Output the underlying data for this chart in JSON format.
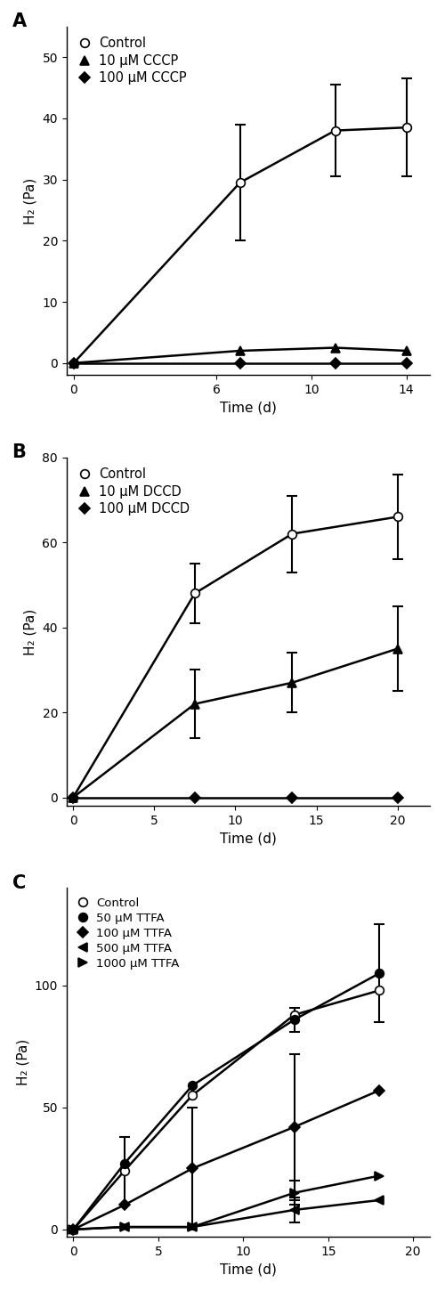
{
  "panel_A": {
    "title": "A",
    "xlabel": "Time (d)",
    "ylabel": "H₂ (Pa)",
    "ylim": [
      -2,
      55
    ],
    "yticks": [
      0,
      10,
      20,
      30,
      40,
      50
    ],
    "xlim": [
      -0.3,
      15
    ],
    "xticks": [
      0,
      6,
      10,
      14
    ],
    "series": [
      {
        "label": "Control",
        "x": [
          0,
          7,
          11,
          14
        ],
        "y": [
          0,
          29.5,
          38.0,
          38.5
        ],
        "yerr": [
          0,
          9.5,
          7.5,
          8.0
        ],
        "marker": "o",
        "markerfacecolor": "white",
        "markeredgecolor": "black",
        "linecolor": "black",
        "markersize": 7,
        "linewidth": 1.8
      },
      {
        "label": "10 μM CCCP",
        "x": [
          0,
          7,
          11,
          14
        ],
        "y": [
          0,
          2.0,
          2.5,
          2.0
        ],
        "yerr": [
          0,
          0,
          0,
          0
        ],
        "marker": "^",
        "markerfacecolor": "black",
        "markeredgecolor": "black",
        "linecolor": "black",
        "markersize": 7,
        "linewidth": 1.8
      },
      {
        "label": "100 μM CCCP",
        "x": [
          0,
          7,
          11,
          14
        ],
        "y": [
          0,
          0.0,
          0.0,
          0.0
        ],
        "yerr": [
          0,
          0,
          0,
          0
        ],
        "marker": "D",
        "markerfacecolor": "black",
        "markeredgecolor": "black",
        "linecolor": "black",
        "markersize": 6,
        "linewidth": 1.8
      }
    ]
  },
  "panel_B": {
    "title": "B",
    "xlabel": "Time (d)",
    "ylabel": "H₂ (Pa)",
    "ylim": [
      -2,
      80
    ],
    "yticks": [
      0,
      20,
      40,
      60,
      80
    ],
    "xlim": [
      -0.4,
      22
    ],
    "xticks": [
      0,
      5,
      10,
      15,
      20
    ],
    "series": [
      {
        "label": "Control",
        "x": [
          0,
          7.5,
          13.5,
          20
        ],
        "y": [
          0,
          48,
          62,
          66
        ],
        "yerr": [
          0,
          7,
          9,
          10
        ],
        "marker": "o",
        "markerfacecolor": "white",
        "markeredgecolor": "black",
        "linecolor": "black",
        "markersize": 7,
        "linewidth": 1.8
      },
      {
        "label": "10 μM DCCD",
        "x": [
          0,
          7.5,
          13.5,
          20
        ],
        "y": [
          0,
          22,
          27,
          35
        ],
        "yerr": [
          0,
          8,
          7,
          10
        ],
        "marker": "^",
        "markerfacecolor": "black",
        "markeredgecolor": "black",
        "linecolor": "black",
        "markersize": 7,
        "linewidth": 1.8
      },
      {
        "label": "100 μM DCCD",
        "x": [
          0,
          7.5,
          13.5,
          20
        ],
        "y": [
          0,
          0.0,
          0.0,
          0.0
        ],
        "yerr": [
          0,
          0,
          0,
          0
        ],
        "marker": "D",
        "markerfacecolor": "black",
        "markeredgecolor": "black",
        "linecolor": "black",
        "markersize": 6,
        "linewidth": 1.8
      }
    ]
  },
  "panel_C": {
    "title": "C",
    "xlabel": "Time (d)",
    "ylabel": "H₂ (Pa)",
    "ylim": [
      -3,
      140
    ],
    "yticks": [
      0,
      50,
      100
    ],
    "xlim": [
      -0.4,
      21
    ],
    "xticks": [
      0,
      5,
      10,
      15,
      20
    ],
    "series": [
      {
        "label": "Control",
        "x": [
          0,
          3,
          7,
          13,
          18
        ],
        "y": [
          0,
          24,
          55,
          88,
          98
        ],
        "yerr": [
          0,
          14,
          0,
          0,
          0
        ],
        "marker": "o",
        "markerfacecolor": "white",
        "markeredgecolor": "black",
        "linecolor": "black",
        "markersize": 7,
        "linewidth": 1.8,
        "arrow_marker": "none"
      },
      {
        "label": "50 μM TTFA",
        "x": [
          0,
          3,
          7,
          13,
          18
        ],
        "y": [
          0,
          27,
          59,
          86,
          105
        ],
        "yerr": [
          0,
          0,
          0,
          5,
          20
        ],
        "marker": "o",
        "markerfacecolor": "black",
        "markeredgecolor": "black",
        "linecolor": "black",
        "markersize": 7,
        "linewidth": 1.8,
        "arrow_marker": "none"
      },
      {
        "label": "100 μM TTFA",
        "x": [
          0,
          3,
          7,
          13,
          18
        ],
        "y": [
          0,
          10,
          25,
          42,
          57
        ],
        "yerr": [
          0,
          0,
          25,
          30,
          0
        ],
        "marker": "D",
        "markerfacecolor": "black",
        "markeredgecolor": "black",
        "linecolor": "black",
        "markersize": 6,
        "linewidth": 1.8,
        "arrow_marker": "none"
      },
      {
        "label": "500 μM TTFA",
        "x": [
          0,
          3,
          7,
          13,
          18
        ],
        "y": [
          0,
          1,
          1,
          8,
          12
        ],
        "yerr": [
          0,
          0,
          0,
          5,
          0
        ],
        "marker": "<",
        "markerfacecolor": "black",
        "markeredgecolor": "black",
        "linecolor": "black",
        "markersize": 7,
        "linewidth": 1.8,
        "arrow_marker": "left"
      },
      {
        "label": "1000 μM TTFA",
        "x": [
          0,
          3,
          7,
          13,
          18
        ],
        "y": [
          0,
          1,
          1,
          15,
          22
        ],
        "yerr": [
          0,
          0,
          0,
          5,
          0
        ],
        "marker": ">",
        "markerfacecolor": "black",
        "markeredgecolor": "black",
        "linecolor": "black",
        "markersize": 7,
        "linewidth": 1.8,
        "arrow_marker": "right"
      }
    ]
  }
}
